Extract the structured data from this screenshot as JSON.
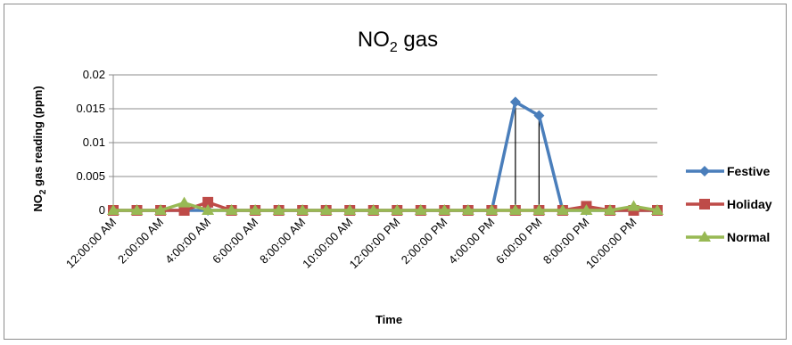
{
  "chart_data": {
    "type": "line",
    "title_main": "NO",
    "title_sub": "2",
    "title_rest": " gas",
    "xlabel": "Time",
    "ylabel_main": "NO",
    "ylabel_sub": "2",
    "ylabel_rest": " gas reading (ppm)",
    "ylim": [
      0,
      0.02
    ],
    "yticks": [
      "0",
      "0.005",
      "0.01",
      "0.015",
      "0.02"
    ],
    "ytick_values": [
      0,
      0.005,
      0.01,
      0.015,
      0.02
    ],
    "grid": true,
    "legend_position": "right",
    "x_tick_labels": [
      "12:00:00 AM",
      "2:00:00 AM",
      "4:00:00 AM",
      "6:00:00 AM",
      "8:00:00 AM",
      "10:00:00 AM",
      "12:00:00 PM",
      "2:00:00 PM",
      "4:00:00 PM",
      "6:00:00 PM",
      "8:00:00 PM",
      "10:00:00 PM"
    ],
    "x": [
      "12:00:00 AM",
      "1:00:00 AM",
      "2:00:00 AM",
      "3:00:00 AM",
      "4:00:00 AM",
      "5:00:00 AM",
      "6:00:00 AM",
      "7:00:00 AM",
      "8:00:00 AM",
      "9:00:00 AM",
      "10:00:00 AM",
      "11:00:00 AM",
      "12:00:00 PM",
      "1:00:00 PM",
      "2:00:00 PM",
      "3:00:00 PM",
      "4:00:00 PM",
      "5:00:00 PM",
      "6:00:00 PM",
      "7:00:00 PM",
      "8:00:00 PM",
      "9:00:00 PM",
      "10:00:00 PM",
      "11:00:00 PM"
    ],
    "series": [
      {
        "name": "Festive",
        "color": "#4a7ebb",
        "marker": "diamond",
        "values": [
          0,
          0,
          0,
          0,
          0,
          0,
          0,
          0,
          0,
          0,
          0,
          0,
          0,
          0,
          0,
          0,
          0,
          0.016,
          0.014,
          0,
          0,
          0,
          0,
          0
        ]
      },
      {
        "name": "Holiday",
        "color": "#be4b48",
        "marker": "square",
        "values": [
          0,
          0,
          0,
          0,
          0.0012,
          0,
          0,
          0,
          0,
          0,
          0,
          0,
          0,
          0,
          0,
          0,
          0,
          0,
          0,
          0,
          0.0006,
          0,
          0,
          0
        ]
      },
      {
        "name": "Normal",
        "color": "#98b954",
        "marker": "triangle",
        "values": [
          0,
          0,
          0,
          0.0011,
          0,
          0,
          0,
          0,
          0,
          0,
          0,
          0,
          0,
          0,
          0,
          0,
          0,
          0,
          0,
          0,
          0,
          0,
          0.0006,
          0
        ]
      }
    ]
  }
}
